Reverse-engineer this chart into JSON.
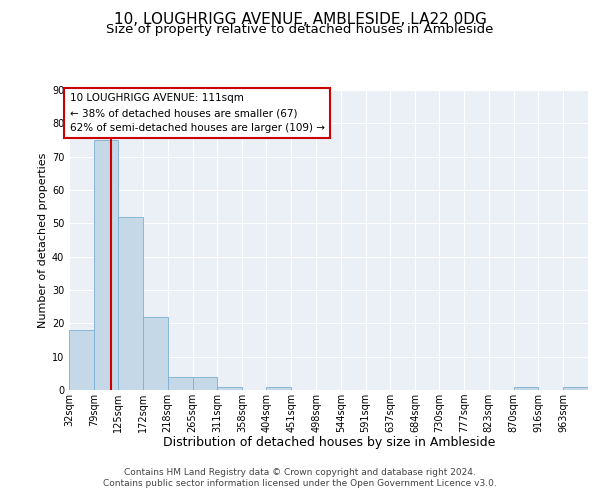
{
  "title": "10, LOUGHRIGG AVENUE, AMBLESIDE, LA22 0DG",
  "subtitle": "Size of property relative to detached houses in Ambleside",
  "xlabel": "Distribution of detached houses by size in Ambleside",
  "ylabel": "Number of detached properties",
  "bin_labels": [
    "32sqm",
    "79sqm",
    "125sqm",
    "172sqm",
    "218sqm",
    "265sqm",
    "311sqm",
    "358sqm",
    "404sqm",
    "451sqm",
    "498sqm",
    "544sqm",
    "591sqm",
    "637sqm",
    "684sqm",
    "730sqm",
    "777sqm",
    "823sqm",
    "870sqm",
    "916sqm",
    "963sqm"
  ],
  "bin_edges": [
    32,
    79,
    125,
    172,
    218,
    265,
    311,
    358,
    404,
    451,
    498,
    544,
    591,
    637,
    684,
    730,
    777,
    823,
    870,
    916,
    963,
    1010
  ],
  "counts": [
    18,
    75,
    52,
    22,
    4,
    4,
    1,
    0,
    1,
    0,
    0,
    0,
    0,
    0,
    0,
    0,
    0,
    0,
    1,
    0,
    1
  ],
  "bar_color": "#c5d8e8",
  "bar_edge_color": "#7bafd4",
  "property_size": 111,
  "red_line_color": "#cc0000",
  "annotation_line1": "10 LOUGHRIGG AVENUE: 111sqm",
  "annotation_line2": "← 38% of detached houses are smaller (67)",
  "annotation_line3": "62% of semi-detached houses are larger (109) →",
  "annotation_box_color": "#ffffff",
  "annotation_box_edge": "#cc0000",
  "ylim": [
    0,
    90
  ],
  "yticks": [
    0,
    10,
    20,
    30,
    40,
    50,
    60,
    70,
    80,
    90
  ],
  "footer_line1": "Contains HM Land Registry data © Crown copyright and database right 2024.",
  "footer_line2": "Contains public sector information licensed under the Open Government Licence v3.0.",
  "bg_color": "#eaf0f6",
  "grid_color": "#ffffff",
  "title_fontsize": 11,
  "subtitle_fontsize": 9.5,
  "xlabel_fontsize": 9,
  "ylabel_fontsize": 8,
  "tick_fontsize": 7,
  "annotation_fontsize": 7.5,
  "footer_fontsize": 6.5
}
